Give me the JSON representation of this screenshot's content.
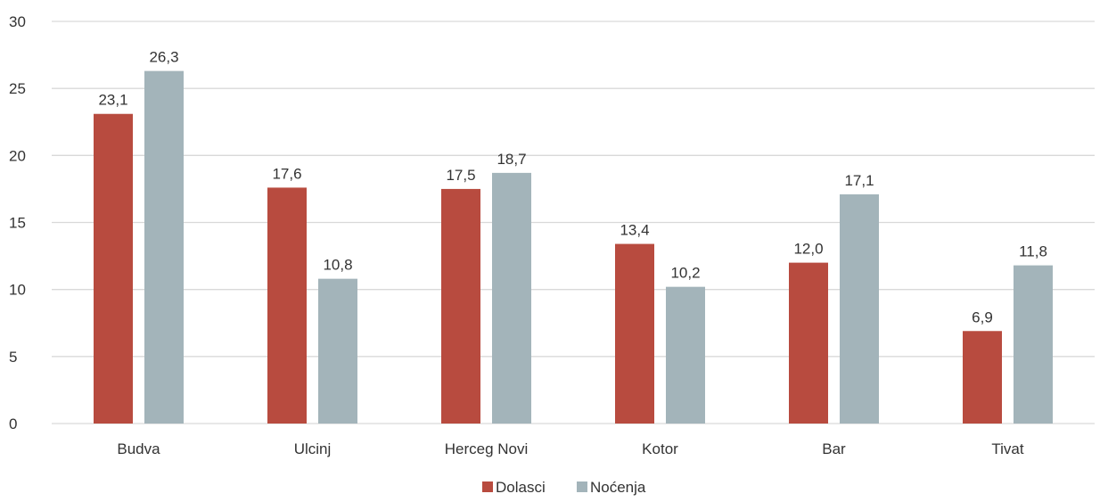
{
  "chart_data": {
    "type": "bar",
    "categories": [
      "Budva",
      "Ulcinj",
      "Herceg Novi",
      "Kotor",
      "Bar",
      "Tivat"
    ],
    "series": [
      {
        "name": "Dolasci",
        "values": [
          23.1,
          17.6,
          17.5,
          13.4,
          12.0,
          6.9
        ],
        "labels": [
          "23,1",
          "17,6",
          "17,5",
          "13,4",
          "12,0",
          "6,9"
        ],
        "color": "#b84b3f"
      },
      {
        "name": "Noćenja",
        "values": [
          26.3,
          10.8,
          18.7,
          10.2,
          17.1,
          11.8
        ],
        "labels": [
          "26,3",
          "10,8",
          "18,7",
          "10,2",
          "17,1",
          "11,8"
        ],
        "color": "#a3b4ba"
      }
    ],
    "ylim": [
      0,
      30
    ],
    "yticks": [
      0,
      5,
      10,
      15,
      20,
      25,
      30
    ],
    "grid": true,
    "legend_position": "bottom",
    "title": "",
    "xlabel": "",
    "ylabel": ""
  }
}
